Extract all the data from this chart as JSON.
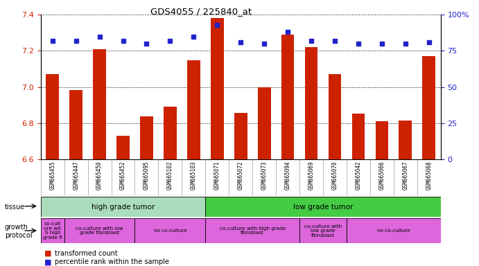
{
  "title": "GDS4055 / 225840_at",
  "samples": [
    "GSM665455",
    "GSM665447",
    "GSM665450",
    "GSM665452",
    "GSM665095",
    "GSM665102",
    "GSM665103",
    "GSM665071",
    "GSM665072",
    "GSM665073",
    "GSM665094",
    "GSM665069",
    "GSM665070",
    "GSM665042",
    "GSM665066",
    "GSM665067",
    "GSM665068"
  ],
  "red_values": [
    7.07,
    6.985,
    7.21,
    6.73,
    6.838,
    6.893,
    7.15,
    7.38,
    6.857,
    7.0,
    7.29,
    7.22,
    7.07,
    6.855,
    6.81,
    6.816,
    7.17
  ],
  "blue_values": [
    82,
    82,
    85,
    82,
    80,
    82,
    85,
    93,
    81,
    80,
    88,
    82,
    82,
    80,
    80,
    80,
    81
  ],
  "ylim_left": [
    6.6,
    7.4
  ],
  "ylim_right": [
    0,
    100
  ],
  "yticks_left": [
    6.6,
    6.8,
    7.0,
    7.2,
    7.4
  ],
  "yticks_right": [
    0,
    25,
    50,
    75,
    100
  ],
  "ytick_labels_right": [
    "0",
    "25",
    "50",
    "75",
    "100%"
  ],
  "baseline": 6.6,
  "bar_color": "#cc2200",
  "dot_color": "#2222cc",
  "xticklabel_bg": "#dddddd",
  "tissue_colors": [
    "#aaddbb",
    "#44cc44"
  ],
  "protocol_color": "#dd66dd",
  "tissue_groups": [
    {
      "label": "high grade tumor",
      "start": 0,
      "end": 7
    },
    {
      "label": "low grade tumor",
      "start": 7,
      "end": 17
    }
  ],
  "protocol_groups": [
    {
      "label": "co-cult\nure wit\nh high\ngrade fi",
      "start": 0,
      "end": 1
    },
    {
      "label": "co-culture with low\ngrade fibroblast",
      "start": 1,
      "end": 4
    },
    {
      "label": "no co-culture",
      "start": 4,
      "end": 7
    },
    {
      "label": "co-culture with high grade\nfibroblast",
      "start": 7,
      "end": 11
    },
    {
      "label": "co-culture with\nlow grade\nfibroblast",
      "start": 11,
      "end": 13
    },
    {
      "label": "no co-culture",
      "start": 13,
      "end": 17
    }
  ],
  "legend_items": [
    {
      "color": "#cc2200",
      "label": "transformed count"
    },
    {
      "color": "#2222cc",
      "label": "percentile rank within the sample"
    }
  ]
}
